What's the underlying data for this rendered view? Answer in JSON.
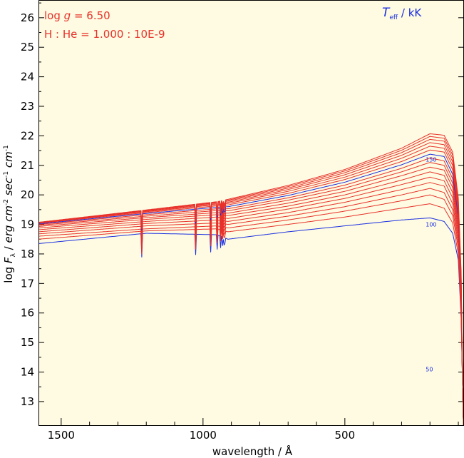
{
  "chart_data": {
    "type": "line",
    "xlabel": "wavelength / Å",
    "ylabel": "log F_λ / erg cm^-2 sec^-1 cm^-1",
    "xlim": [
      1580,
      80
    ],
    "ylim": [
      12.2,
      26.6
    ],
    "x_ticks": [
      "1500",
      "1000",
      "500"
    ],
    "y_ticks": [
      "13",
      "14",
      "15",
      "16",
      "17",
      "18",
      "19",
      "20",
      "21",
      "22",
      "23",
      "24",
      "25",
      "26"
    ],
    "annotations": {
      "logg_prefix": "log ",
      "logg_g": "g",
      "logg_value": " = 6.50",
      "abundance": "H : He = 1.000 : 10E-9",
      "teff_T": "T",
      "teff_sub": "eff",
      "teff_unit": " / kK"
    },
    "curve_labels": [
      {
        "text": "150",
        "x": 200,
        "y": 21.2
      },
      {
        "text": "100",
        "x": 200,
        "y": 19.0
      },
      {
        "text": "50",
        "x": 200,
        "y": 14.1
      }
    ],
    "colors": {
      "background": "#fefbe2",
      "red": "#e8312a",
      "blue": "#1a2ee0"
    },
    "series": [
      {
        "teff": 100,
        "color": "blue",
        "values": [
          [
            1580,
            18.35
          ],
          [
            1200,
            18.7
          ],
          [
            950,
            18.65
          ],
          [
            912,
            18.5
          ],
          [
            700,
            18.75
          ],
          [
            500,
            18.95
          ],
          [
            300,
            19.15
          ],
          [
            200,
            19.22
          ],
          [
            150,
            19.1
          ],
          [
            120,
            18.7
          ],
          [
            100,
            17.8
          ],
          [
            90,
            15.8
          ],
          [
            85,
            13.5
          ],
          [
            82,
            12.2
          ]
        ]
      },
      {
        "teff": 105,
        "color": "red",
        "values": [
          [
            1580,
            18.5
          ],
          [
            1200,
            18.78
          ],
          [
            950,
            18.85
          ],
          [
            912,
            18.75
          ],
          [
            700,
            19.0
          ],
          [
            500,
            19.25
          ],
          [
            300,
            19.55
          ],
          [
            200,
            19.7
          ],
          [
            150,
            19.55
          ],
          [
            120,
            19.05
          ],
          [
            100,
            18.0
          ],
          [
            90,
            15.9
          ],
          [
            85,
            13.5
          ],
          [
            82,
            12.2
          ]
        ]
      },
      {
        "teff": 110,
        "color": "red",
        "values": [
          [
            1580,
            18.6
          ],
          [
            1200,
            18.85
          ],
          [
            950,
            18.95
          ],
          [
            912,
            18.88
          ],
          [
            700,
            19.15
          ],
          [
            500,
            19.45
          ],
          [
            300,
            19.8
          ],
          [
            200,
            20.0
          ],
          [
            150,
            19.85
          ],
          [
            120,
            19.3
          ],
          [
            100,
            18.2
          ],
          [
            90,
            16.0
          ],
          [
            85,
            13.5
          ],
          [
            82,
            12.2
          ]
        ]
      },
      {
        "teff": 115,
        "color": "red",
        "values": [
          [
            1580,
            18.68
          ],
          [
            1200,
            18.95
          ],
          [
            950,
            19.05
          ],
          [
            912,
            19.0
          ],
          [
            700,
            19.28
          ],
          [
            500,
            19.6
          ],
          [
            300,
            20.0
          ],
          [
            200,
            20.22
          ],
          [
            150,
            20.08
          ],
          [
            120,
            19.5
          ],
          [
            100,
            18.35
          ],
          [
            90,
            16.1
          ],
          [
            85,
            13.5
          ],
          [
            82,
            12.2
          ]
        ]
      },
      {
        "teff": 120,
        "color": "red",
        "values": [
          [
            1580,
            18.75
          ],
          [
            1200,
            19.03
          ],
          [
            950,
            19.15
          ],
          [
            912,
            19.1
          ],
          [
            700,
            19.4
          ],
          [
            500,
            19.75
          ],
          [
            300,
            20.18
          ],
          [
            200,
            20.42
          ],
          [
            150,
            20.3
          ],
          [
            120,
            19.7
          ],
          [
            100,
            18.5
          ],
          [
            90,
            16.2
          ],
          [
            85,
            13.5
          ],
          [
            82,
            12.2
          ]
        ]
      },
      {
        "teff": 125,
        "color": "red",
        "values": [
          [
            1580,
            18.82
          ],
          [
            1200,
            19.1
          ],
          [
            950,
            19.25
          ],
          [
            912,
            19.2
          ],
          [
            700,
            19.52
          ],
          [
            500,
            19.88
          ],
          [
            300,
            20.35
          ],
          [
            200,
            20.6
          ],
          [
            150,
            20.48
          ],
          [
            120,
            19.9
          ],
          [
            100,
            18.65
          ],
          [
            90,
            16.3
          ],
          [
            85,
            13.5
          ],
          [
            82,
            12.2
          ]
        ]
      },
      {
        "teff": 130,
        "color": "red",
        "values": [
          [
            1580,
            18.88
          ],
          [
            1200,
            19.17
          ],
          [
            950,
            19.33
          ],
          [
            912,
            19.3
          ],
          [
            700,
            19.62
          ],
          [
            500,
            20.0
          ],
          [
            300,
            20.5
          ],
          [
            200,
            20.78
          ],
          [
            150,
            20.66
          ],
          [
            120,
            20.08
          ],
          [
            100,
            18.8
          ],
          [
            90,
            16.4
          ],
          [
            85,
            13.5
          ],
          [
            82,
            12.2
          ]
        ]
      },
      {
        "teff": 135,
        "color": "red",
        "values": [
          [
            1580,
            18.93
          ],
          [
            1200,
            19.23
          ],
          [
            950,
            19.4
          ],
          [
            912,
            19.38
          ],
          [
            700,
            19.72
          ],
          [
            500,
            20.12
          ],
          [
            300,
            20.65
          ],
          [
            200,
            20.94
          ],
          [
            150,
            20.84
          ],
          [
            120,
            20.25
          ],
          [
            100,
            18.95
          ],
          [
            90,
            16.5
          ],
          [
            85,
            13.5
          ],
          [
            82,
            12.2
          ]
        ]
      },
      {
        "teff": 140,
        "color": "red",
        "values": [
          [
            1580,
            18.97
          ],
          [
            1200,
            19.28
          ],
          [
            950,
            19.47
          ],
          [
            912,
            19.46
          ],
          [
            700,
            19.82
          ],
          [
            500,
            20.23
          ],
          [
            300,
            20.78
          ],
          [
            200,
            21.1
          ],
          [
            150,
            21.0
          ],
          [
            120,
            20.4
          ],
          [
            100,
            19.1
          ],
          [
            90,
            16.6
          ],
          [
            85,
            13.5
          ],
          [
            82,
            12.2
          ]
        ]
      },
      {
        "teff": 145,
        "color": "red",
        "values": [
          [
            1580,
            19.0
          ],
          [
            1200,
            19.33
          ],
          [
            950,
            19.53
          ],
          [
            912,
            19.53
          ],
          [
            700,
            19.9
          ],
          [
            500,
            20.33
          ],
          [
            300,
            20.9
          ],
          [
            200,
            21.25
          ],
          [
            150,
            21.15
          ],
          [
            120,
            20.55
          ],
          [
            100,
            19.2
          ],
          [
            90,
            16.7
          ],
          [
            85,
            13.5
          ],
          [
            82,
            12.2
          ]
        ]
      },
      {
        "teff": 150,
        "color": "blue",
        "values": [
          [
            1580,
            19.02
          ],
          [
            1200,
            19.37
          ],
          [
            950,
            19.58
          ],
          [
            912,
            19.6
          ],
          [
            700,
            19.98
          ],
          [
            500,
            20.43
          ],
          [
            300,
            21.02
          ],
          [
            200,
            21.38
          ],
          [
            150,
            21.3
          ],
          [
            120,
            20.7
          ],
          [
            100,
            19.3
          ],
          [
            90,
            16.8
          ],
          [
            85,
            13.5
          ],
          [
            82,
            12.2
          ]
        ]
      },
      {
        "teff": 155,
        "color": "red",
        "values": [
          [
            1580,
            19.04
          ],
          [
            1200,
            19.4
          ],
          [
            950,
            19.63
          ],
          [
            912,
            19.66
          ],
          [
            700,
            20.05
          ],
          [
            500,
            20.52
          ],
          [
            300,
            21.13
          ],
          [
            200,
            21.52
          ],
          [
            150,
            21.45
          ],
          [
            120,
            20.85
          ],
          [
            100,
            19.4
          ],
          [
            90,
            16.9
          ],
          [
            85,
            13.5
          ],
          [
            82,
            12.2
          ]
        ]
      },
      {
        "teff": 160,
        "color": "red",
        "values": [
          [
            1580,
            19.05
          ],
          [
            1200,
            19.43
          ],
          [
            950,
            19.67
          ],
          [
            912,
            19.71
          ],
          [
            700,
            20.12
          ],
          [
            500,
            20.6
          ],
          [
            300,
            21.24
          ],
          [
            200,
            21.65
          ],
          [
            150,
            21.58
          ],
          [
            120,
            21.0
          ],
          [
            100,
            19.5
          ],
          [
            90,
            17.0
          ],
          [
            85,
            13.5
          ],
          [
            82,
            12.2
          ]
        ]
      },
      {
        "teff": 165,
        "color": "red",
        "values": [
          [
            1580,
            19.06
          ],
          [
            1200,
            19.45
          ],
          [
            950,
            19.7
          ],
          [
            912,
            19.75
          ],
          [
            700,
            20.18
          ],
          [
            500,
            20.68
          ],
          [
            300,
            21.34
          ],
          [
            200,
            21.77
          ],
          [
            150,
            21.7
          ],
          [
            120,
            21.12
          ],
          [
            100,
            19.6
          ],
          [
            90,
            17.1
          ],
          [
            85,
            13.5
          ],
          [
            82,
            12.2
          ]
        ]
      },
      {
        "teff": 170,
        "color": "red",
        "values": [
          [
            1580,
            19.06
          ],
          [
            1200,
            19.47
          ],
          [
            950,
            19.73
          ],
          [
            912,
            19.79
          ],
          [
            700,
            20.23
          ],
          [
            500,
            20.75
          ],
          [
            300,
            21.43
          ],
          [
            200,
            21.88
          ],
          [
            150,
            21.82
          ],
          [
            120,
            21.24
          ],
          [
            100,
            19.7
          ],
          [
            90,
            17.2
          ],
          [
            85,
            13.5
          ],
          [
            82,
            12.2
          ]
        ]
      },
      {
        "teff": 175,
        "color": "red",
        "values": [
          [
            1580,
            19.07
          ],
          [
            1200,
            19.48
          ],
          [
            950,
            19.75
          ],
          [
            912,
            19.82
          ],
          [
            700,
            20.28
          ],
          [
            500,
            20.81
          ],
          [
            300,
            21.51
          ],
          [
            200,
            21.98
          ],
          [
            150,
            21.92
          ],
          [
            120,
            21.35
          ],
          [
            100,
            19.8
          ],
          [
            90,
            17.3
          ],
          [
            85,
            13.5
          ],
          [
            82,
            12.2
          ]
        ]
      },
      {
        "teff": 180,
        "color": "red",
        "values": [
          [
            1580,
            19.07
          ],
          [
            1200,
            19.49
          ],
          [
            950,
            19.77
          ],
          [
            912,
            19.85
          ],
          [
            700,
            20.32
          ],
          [
            500,
            20.86
          ],
          [
            300,
            21.58
          ],
          [
            200,
            22.07
          ],
          [
            150,
            22.02
          ],
          [
            120,
            21.45
          ],
          [
            100,
            19.9
          ],
          [
            90,
            17.4
          ],
          [
            85,
            13.5
          ],
          [
            82,
            12.2
          ]
        ]
      }
    ],
    "absorption_lines": [
      {
        "x": 1216,
        "depth": 0.8
      },
      {
        "x": 1026,
        "depth": 0.7
      },
      {
        "x": 973,
        "depth": 0.6
      },
      {
        "x": 950,
        "depth": 0.5
      },
      {
        "x": 938,
        "depth": 0.4
      },
      {
        "x": 931,
        "depth": 0.3
      },
      {
        "x": 926,
        "depth": 0.25
      },
      {
        "x": 923,
        "depth": 0.2
      }
    ]
  }
}
